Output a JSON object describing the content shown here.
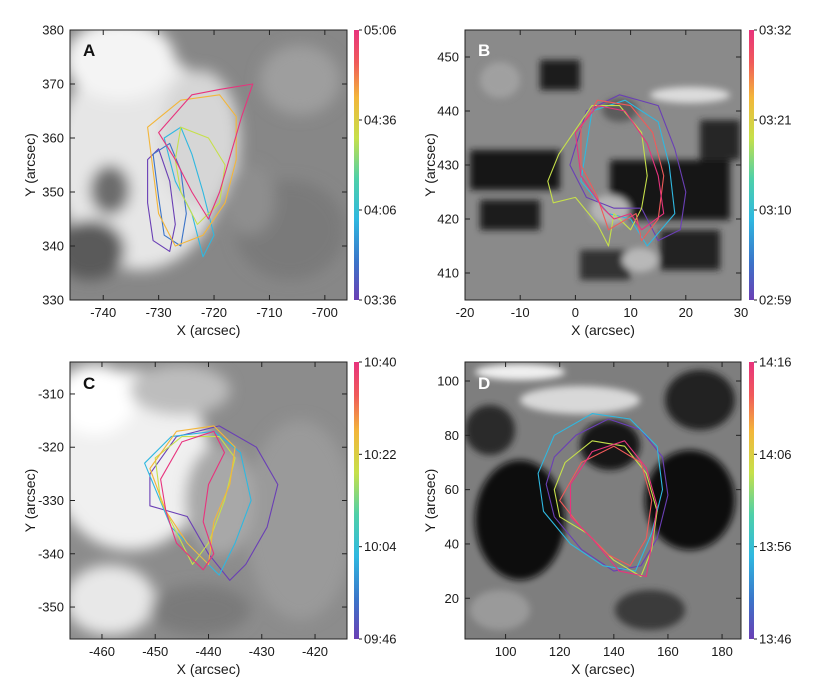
{
  "colorscale": [
    "#6a3fb5",
    "#3b74c9",
    "#2fb8e0",
    "#4fd0a8",
    "#c6e04a",
    "#f3b63a",
    "#f05a5a",
    "#e8337d"
  ],
  "chart_data": [
    {
      "type": "heatmap",
      "panel": "A",
      "background_style": "bright",
      "xlabel": "X (arcsec)",
      "ylabel": "Y (arcsec)",
      "xlim": [
        -746,
        -696
      ],
      "ylim": [
        330,
        380
      ],
      "xticks": [
        {
          "v": -740,
          "label": "-740"
        },
        {
          "v": -730,
          "label": "-730"
        },
        {
          "v": -720,
          "label": "-720"
        },
        {
          "v": -710,
          "label": "-710"
        },
        {
          "v": -700,
          "label": "-700"
        }
      ],
      "yticks": [
        {
          "v": 330,
          "label": "330"
        },
        {
          "v": 340,
          "label": "340"
        },
        {
          "v": 350,
          "label": "350"
        },
        {
          "v": 360,
          "label": "360"
        },
        {
          "v": 370,
          "label": "370"
        },
        {
          "v": 380,
          "label": "380"
        }
      ],
      "colorbar": {
        "ticks": [
          "03:36",
          "04:06",
          "04:36",
          "05:06"
        ]
      },
      "contours": [
        {
          "t": 0.0,
          "points": [
            [
              -732,
              356
            ],
            [
              -732,
              348
            ],
            [
              -731,
              341
            ],
            [
              -728,
              339
            ],
            [
              -727,
              344
            ],
            [
              -728,
              352
            ],
            [
              -730,
              358
            ]
          ]
        },
        {
          "t": 0.2,
          "points": [
            [
              -731,
              357
            ],
            [
              -730,
              349
            ],
            [
              -729,
              342
            ],
            [
              -726,
              340
            ],
            [
              -725,
              346
            ],
            [
              -726,
              354
            ],
            [
              -728,
              359
            ]
          ]
        },
        {
          "t": 0.35,
          "points": [
            [
              -729,
              360
            ],
            [
              -727,
              352
            ],
            [
              -724,
              346
            ],
            [
              -722,
              338
            ],
            [
              -720,
              342
            ],
            [
              -722,
              350
            ],
            [
              -724,
              357
            ],
            [
              -726,
              362
            ]
          ]
        },
        {
          "t": 0.55,
          "points": [
            [
              -726,
              362
            ],
            [
              -721,
              360
            ],
            [
              -718,
              355
            ],
            [
              -719,
              348
            ],
            [
              -723,
              344
            ],
            [
              -726,
              350
            ],
            [
              -727,
              356
            ]
          ]
        },
        {
          "t": 0.75,
          "points": [
            [
              -732,
              362
            ],
            [
              -726,
              367
            ],
            [
              -719,
              368
            ],
            [
              -716,
              364
            ],
            [
              -716,
              356
            ],
            [
              -718,
              348
            ],
            [
              -722,
              342
            ],
            [
              -727,
              340
            ],
            [
              -730,
              346
            ],
            [
              -731,
              354
            ]
          ]
        },
        {
          "t": 1.0,
          "points": [
            [
              -730,
              361
            ],
            [
              -724,
              368
            ],
            [
              -719,
              369
            ],
            [
              -713,
              370
            ],
            [
              -715,
              364
            ],
            [
              -717,
              357
            ],
            [
              -719,
              350
            ],
            [
              -721,
              345
            ],
            [
              -724,
              350
            ],
            [
              -727,
              356
            ]
          ]
        }
      ]
    },
    {
      "type": "heatmap",
      "panel": "B",
      "background_style": "dark",
      "xlabel": "X (arcsec)",
      "ylabel": "Y (arcsec)",
      "xlim": [
        -20,
        30
      ],
      "ylim": [
        405,
        455
      ],
      "xticks": [
        {
          "v": -20,
          "label": "-20"
        },
        {
          "v": -10,
          "label": "-10"
        },
        {
          "v": 0,
          "label": "0"
        },
        {
          "v": 10,
          "label": "10"
        },
        {
          "v": 20,
          "label": "20"
        },
        {
          "v": 30,
          "label": "30"
        }
      ],
      "yticks": [
        {
          "v": 410,
          "label": "410"
        },
        {
          "v": 420,
          "label": "420"
        },
        {
          "v": 430,
          "label": "430"
        },
        {
          "v": 440,
          "label": "440"
        },
        {
          "v": 450,
          "label": "450"
        }
      ],
      "colorbar": {
        "ticks": [
          "02:59",
          "03:10",
          "03:21",
          "03:32"
        ]
      },
      "contours": [
        {
          "t": 0.0,
          "points": [
            [
              2,
              440
            ],
            [
              8,
              443
            ],
            [
              15,
              441
            ],
            [
              18,
              433
            ],
            [
              20,
              425
            ],
            [
              19,
              418
            ],
            [
              15,
              416
            ],
            [
              12,
              422
            ],
            [
              7,
              422
            ],
            [
              2,
              424
            ],
            [
              -1,
              430
            ]
          ]
        },
        {
          "t": 0.3,
          "points": [
            [
              3,
              440
            ],
            [
              9,
              442
            ],
            [
              15,
              438
            ],
            [
              17,
              430
            ],
            [
              18,
              421
            ],
            [
              13,
              415
            ],
            [
              10,
              420
            ],
            [
              6,
              421
            ],
            [
              1,
              427
            ]
          ]
        },
        {
          "t": 0.6,
          "points": [
            [
              -3,
              432
            ],
            [
              -5,
              427
            ],
            [
              -4,
              423
            ],
            [
              0,
              424
            ],
            [
              4,
              419
            ],
            [
              6,
              415
            ],
            [
              7,
              421
            ],
            [
              10,
              418
            ],
            [
              12,
              422
            ],
            [
              13,
              428
            ],
            [
              12,
              436
            ],
            [
              8,
              441
            ],
            [
              3,
              441
            ]
          ]
        },
        {
          "t": 0.8,
          "points": [
            [
              4,
              442
            ],
            [
              10,
              441
            ],
            [
              14,
              436
            ],
            [
              16,
              428
            ],
            [
              15,
              420
            ],
            [
              12,
              416
            ],
            [
              11,
              421
            ],
            [
              6,
              418
            ],
            [
              4,
              424
            ],
            [
              1,
              430
            ],
            [
              1,
              437
            ]
          ]
        },
        {
          "t": 1.0,
          "points": [
            [
              4,
              441
            ],
            [
              9,
              440
            ],
            [
              13,
              434
            ],
            [
              15,
              428
            ],
            [
              16,
              421
            ],
            [
              12,
              418
            ],
            [
              10,
              421
            ],
            [
              7,
              420
            ],
            [
              5,
              422
            ],
            [
              1,
              428
            ],
            [
              0,
              436
            ]
          ]
        }
      ]
    },
    {
      "type": "heatmap",
      "panel": "C",
      "background_style": "bright",
      "xlabel": "X (arcsec)",
      "ylabel": "Y (arcsec)",
      "xlim": [
        -466,
        -414
      ],
      "ylim": [
        -356,
        -304
      ],
      "xticks": [
        {
          "v": -460,
          "label": "-460"
        },
        {
          "v": -450,
          "label": "-450"
        },
        {
          "v": -440,
          "label": "-440"
        },
        {
          "v": -430,
          "label": "-430"
        },
        {
          "v": -420,
          "label": "-420"
        }
      ],
      "yticks": [
        {
          "v": -310,
          "label": "-310"
        },
        {
          "v": -320,
          "label": "-320"
        },
        {
          "v": -330,
          "label": "-330"
        },
        {
          "v": -340,
          "label": "-340"
        },
        {
          "v": -350,
          "label": "-350"
        }
      ],
      "colorbar": {
        "ticks": [
          "09:46",
          "10:04",
          "10:22",
          "10:40"
        ]
      },
      "contours": [
        {
          "t": 0.0,
          "points": [
            [
              -451,
              -325
            ],
            [
              -446,
              -318
            ],
            [
              -438,
              -316
            ],
            [
              -431,
              -320
            ],
            [
              -427,
              -327
            ],
            [
              -429,
              -335
            ],
            [
              -433,
              -342
            ],
            [
              -436,
              -345
            ],
            [
              -440,
              -340
            ],
            [
              -444,
              -333
            ],
            [
              -451,
              -331
            ]
          ]
        },
        {
          "t": 0.25,
          "points": [
            [
              -452,
              -323
            ],
            [
              -447,
              -318
            ],
            [
              -439,
              -317
            ],
            [
              -434,
              -321
            ],
            [
              -432,
              -330
            ],
            [
              -435,
              -338
            ],
            [
              -438,
              -344
            ],
            [
              -442,
              -340
            ],
            [
              -447,
              -335
            ]
          ]
        },
        {
          "t": 0.5,
          "points": [
            [
              -450,
              -322
            ],
            [
              -445,
              -318
            ],
            [
              -438,
              -318
            ],
            [
              -435,
              -322
            ],
            [
              -437,
              -330
            ],
            [
              -440,
              -338
            ],
            [
              -443,
              -342
            ],
            [
              -446,
              -336
            ],
            [
              -449,
              -330
            ]
          ]
        },
        {
          "t": 0.75,
          "points": [
            [
              -451,
              -324
            ],
            [
              -446,
              -317
            ],
            [
              -439,
              -316
            ],
            [
              -435,
              -320
            ],
            [
              -436,
              -327
            ],
            [
              -439,
              -334
            ],
            [
              -440,
              -342
            ],
            [
              -444,
              -338
            ],
            [
              -448,
              -332
            ]
          ]
        },
        {
          "t": 1.0,
          "points": [
            [
              -449,
              -326
            ],
            [
              -445,
              -319
            ],
            [
              -439,
              -317
            ],
            [
              -437,
              -321
            ],
            [
              -440,
              -327
            ],
            [
              -441,
              -334
            ],
            [
              -439,
              -340
            ],
            [
              -441,
              -343
            ],
            [
              -446,
              -338
            ],
            [
              -448,
              -332
            ]
          ]
        }
      ]
    },
    {
      "type": "heatmap",
      "panel": "D",
      "background_style": "dark",
      "xlabel": "X (arcsec)",
      "ylabel": "Y (arcsec)",
      "xlim": [
        85,
        187
      ],
      "ylim": [
        5,
        107
      ],
      "xticks": [
        {
          "v": 100,
          "label": "100"
        },
        {
          "v": 120,
          "label": "120"
        },
        {
          "v": 140,
          "label": "140"
        },
        {
          "v": 160,
          "label": "160"
        },
        {
          "v": 180,
          "label": "180"
        }
      ],
      "yticks": [
        {
          "v": 20,
          "label": "20"
        },
        {
          "v": 40,
          "label": "40"
        },
        {
          "v": 60,
          "label": "60"
        },
        {
          "v": 80,
          "label": "80"
        },
        {
          "v": 100,
          "label": "100"
        }
      ],
      "colorbar": {
        "ticks": [
          "13:46",
          "13:56",
          "14:06",
          "14:16"
        ]
      },
      "contours": [
        {
          "t": 0.0,
          "points": [
            [
              118,
              72
            ],
            [
              126,
              80
            ],
            [
              138,
              86
            ],
            [
              150,
              82
            ],
            [
              158,
              72
            ],
            [
              160,
              58
            ],
            [
              156,
              42
            ],
            [
              150,
              32
            ],
            [
              140,
              30
            ],
            [
              128,
              38
            ],
            [
              118,
              50
            ],
            [
              115,
              62
            ]
          ]
        },
        {
          "t": 0.3,
          "points": [
            [
              112,
              66
            ],
            [
              118,
              80
            ],
            [
              132,
              88
            ],
            [
              146,
              86
            ],
            [
              156,
              76
            ],
            [
              158,
              60
            ],
            [
              154,
              44
            ],
            [
              148,
              30
            ],
            [
              136,
              32
            ],
            [
              124,
              40
            ],
            [
              114,
              52
            ]
          ]
        },
        {
          "t": 0.6,
          "points": [
            [
              118,
              60
            ],
            [
              122,
              70
            ],
            [
              132,
              78
            ],
            [
              144,
              76
            ],
            [
              152,
              66
            ],
            [
              156,
              52
            ],
            [
              154,
              38
            ],
            [
              150,
              28
            ],
            [
              140,
              34
            ],
            [
              130,
              44
            ],
            [
              120,
              50
            ]
          ]
        },
        {
          "t": 0.8,
          "points": [
            [
              120,
              56
            ],
            [
              128,
              70
            ],
            [
              140,
              76
            ],
            [
              150,
              70
            ],
            [
              154,
              56
            ],
            [
              152,
              42
            ],
            [
              146,
              32
            ],
            [
              138,
              36
            ],
            [
              128,
              46
            ]
          ]
        },
        {
          "t": 1.0,
          "points": [
            [
              124,
              62
            ],
            [
              132,
              74
            ],
            [
              144,
              78
            ],
            [
              152,
              68
            ],
            [
              156,
              54
            ],
            [
              154,
              40
            ],
            [
              152,
              28
            ],
            [
              142,
              30
            ],
            [
              132,
              42
            ],
            [
              124,
              50
            ]
          ]
        }
      ]
    }
  ]
}
